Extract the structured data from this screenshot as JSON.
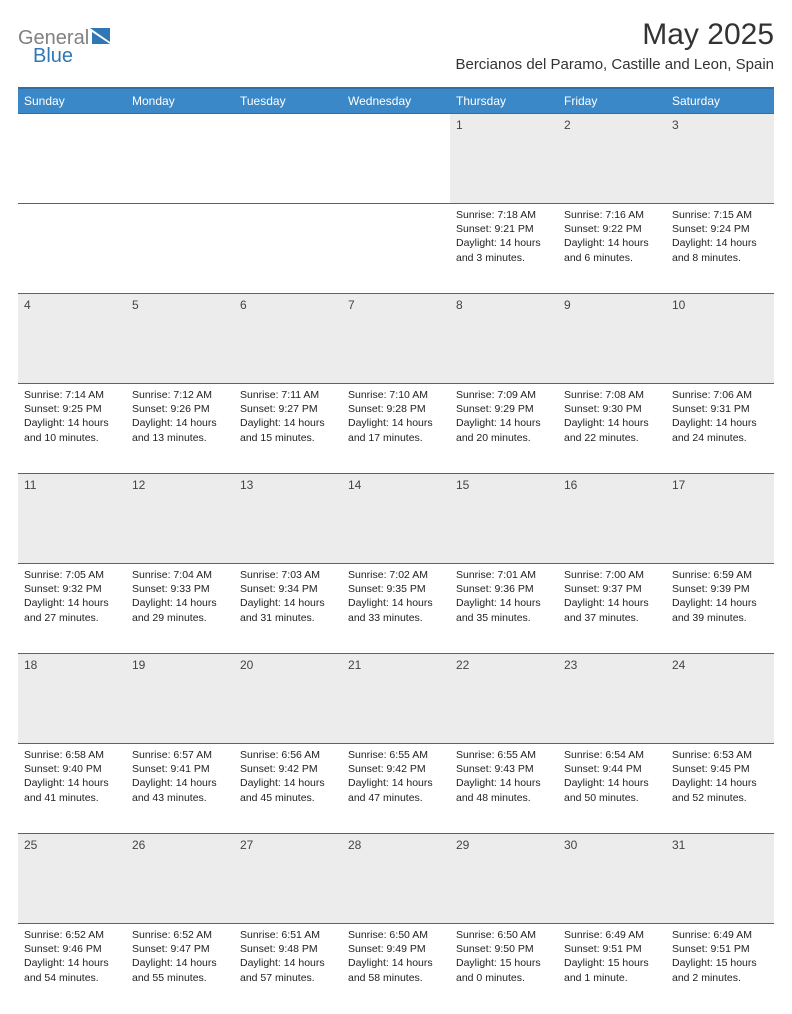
{
  "brand": {
    "name_left": "General",
    "name_right": "Blue"
  },
  "title": "May 2025",
  "location": "Bercianos del Paramo, Castille and Leon, Spain",
  "colors": {
    "header_bg": "#3a88c7",
    "header_border": "#2f6fa6",
    "daynum_bg": "#ececec",
    "text": "#222222",
    "logo_gray": "#818181",
    "logo_blue": "#2f78b5"
  },
  "day_headers": [
    "Sunday",
    "Monday",
    "Tuesday",
    "Wednesday",
    "Thursday",
    "Friday",
    "Saturday"
  ],
  "weeks": [
    [
      null,
      null,
      null,
      null,
      {
        "n": "1",
        "sr": "7:18 AM",
        "ss": "9:21 PM",
        "dl": "14 hours and 3 minutes."
      },
      {
        "n": "2",
        "sr": "7:16 AM",
        "ss": "9:22 PM",
        "dl": "14 hours and 6 minutes."
      },
      {
        "n": "3",
        "sr": "7:15 AM",
        "ss": "9:24 PM",
        "dl": "14 hours and 8 minutes."
      }
    ],
    [
      {
        "n": "4",
        "sr": "7:14 AM",
        "ss": "9:25 PM",
        "dl": "14 hours and 10 minutes."
      },
      {
        "n": "5",
        "sr": "7:12 AM",
        "ss": "9:26 PM",
        "dl": "14 hours and 13 minutes."
      },
      {
        "n": "6",
        "sr": "7:11 AM",
        "ss": "9:27 PM",
        "dl": "14 hours and 15 minutes."
      },
      {
        "n": "7",
        "sr": "7:10 AM",
        "ss": "9:28 PM",
        "dl": "14 hours and 17 minutes."
      },
      {
        "n": "8",
        "sr": "7:09 AM",
        "ss": "9:29 PM",
        "dl": "14 hours and 20 minutes."
      },
      {
        "n": "9",
        "sr": "7:08 AM",
        "ss": "9:30 PM",
        "dl": "14 hours and 22 minutes."
      },
      {
        "n": "10",
        "sr": "7:06 AM",
        "ss": "9:31 PM",
        "dl": "14 hours and 24 minutes."
      }
    ],
    [
      {
        "n": "11",
        "sr": "7:05 AM",
        "ss": "9:32 PM",
        "dl": "14 hours and 27 minutes."
      },
      {
        "n": "12",
        "sr": "7:04 AM",
        "ss": "9:33 PM",
        "dl": "14 hours and 29 minutes."
      },
      {
        "n": "13",
        "sr": "7:03 AM",
        "ss": "9:34 PM",
        "dl": "14 hours and 31 minutes."
      },
      {
        "n": "14",
        "sr": "7:02 AM",
        "ss": "9:35 PM",
        "dl": "14 hours and 33 minutes."
      },
      {
        "n": "15",
        "sr": "7:01 AM",
        "ss": "9:36 PM",
        "dl": "14 hours and 35 minutes."
      },
      {
        "n": "16",
        "sr": "7:00 AM",
        "ss": "9:37 PM",
        "dl": "14 hours and 37 minutes."
      },
      {
        "n": "17",
        "sr": "6:59 AM",
        "ss": "9:39 PM",
        "dl": "14 hours and 39 minutes."
      }
    ],
    [
      {
        "n": "18",
        "sr": "6:58 AM",
        "ss": "9:40 PM",
        "dl": "14 hours and 41 minutes."
      },
      {
        "n": "19",
        "sr": "6:57 AM",
        "ss": "9:41 PM",
        "dl": "14 hours and 43 minutes."
      },
      {
        "n": "20",
        "sr": "6:56 AM",
        "ss": "9:42 PM",
        "dl": "14 hours and 45 minutes."
      },
      {
        "n": "21",
        "sr": "6:55 AM",
        "ss": "9:42 PM",
        "dl": "14 hours and 47 minutes."
      },
      {
        "n": "22",
        "sr": "6:55 AM",
        "ss": "9:43 PM",
        "dl": "14 hours and 48 minutes."
      },
      {
        "n": "23",
        "sr": "6:54 AM",
        "ss": "9:44 PM",
        "dl": "14 hours and 50 minutes."
      },
      {
        "n": "24",
        "sr": "6:53 AM",
        "ss": "9:45 PM",
        "dl": "14 hours and 52 minutes."
      }
    ],
    [
      {
        "n": "25",
        "sr": "6:52 AM",
        "ss": "9:46 PM",
        "dl": "14 hours and 54 minutes."
      },
      {
        "n": "26",
        "sr": "6:52 AM",
        "ss": "9:47 PM",
        "dl": "14 hours and 55 minutes."
      },
      {
        "n": "27",
        "sr": "6:51 AM",
        "ss": "9:48 PM",
        "dl": "14 hours and 57 minutes."
      },
      {
        "n": "28",
        "sr": "6:50 AM",
        "ss": "9:49 PM",
        "dl": "14 hours and 58 minutes."
      },
      {
        "n": "29",
        "sr": "6:50 AM",
        "ss": "9:50 PM",
        "dl": "15 hours and 0 minutes."
      },
      {
        "n": "30",
        "sr": "6:49 AM",
        "ss": "9:51 PM",
        "dl": "15 hours and 1 minute."
      },
      {
        "n": "31",
        "sr": "6:49 AM",
        "ss": "9:51 PM",
        "dl": "15 hours and 2 minutes."
      }
    ]
  ],
  "labels": {
    "sunrise": "Sunrise: ",
    "sunset": "Sunset: ",
    "daylight": "Daylight: "
  }
}
